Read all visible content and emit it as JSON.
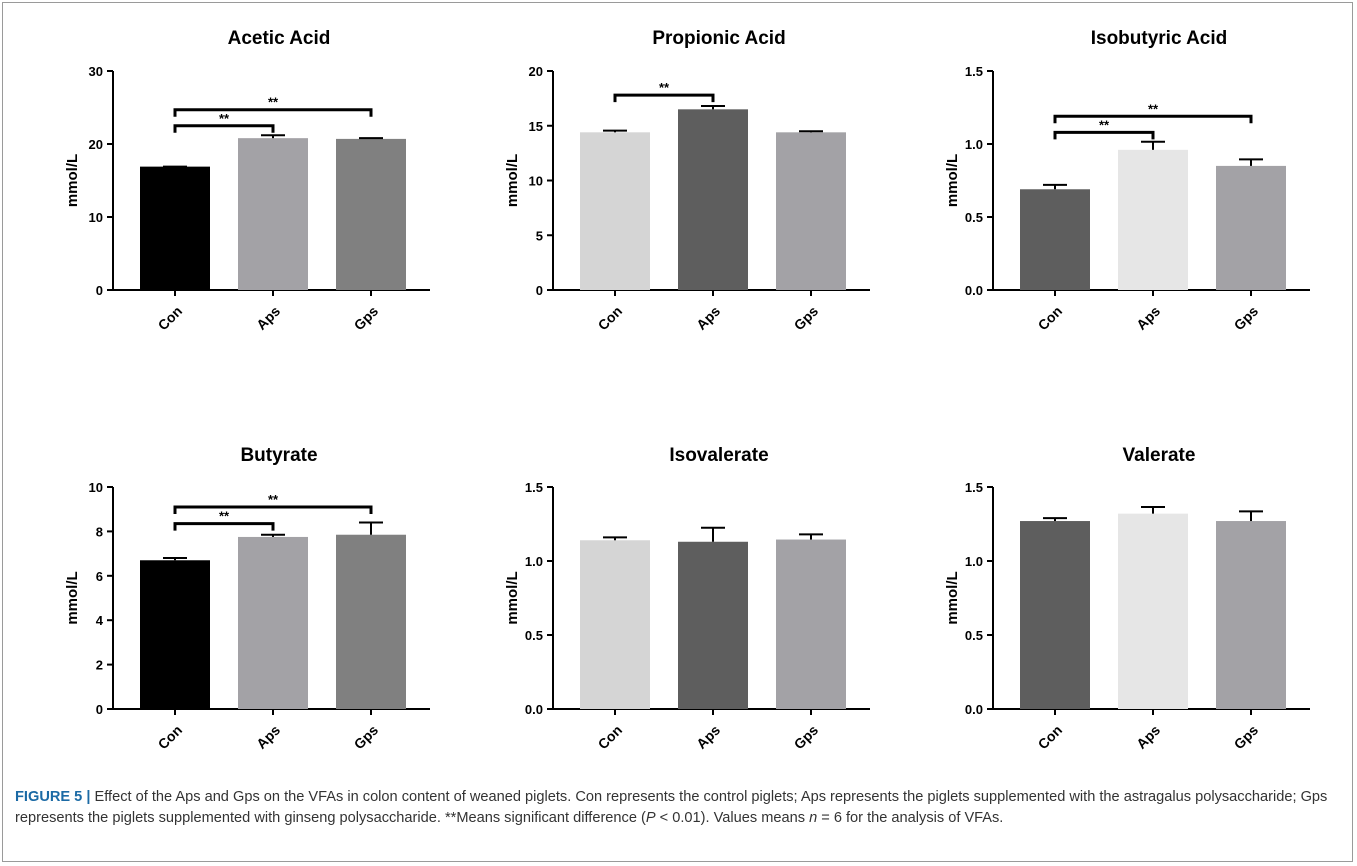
{
  "caption": {
    "figure_label": "FIGURE 5 |",
    "text_part1": " Effect of the Aps and Gps on the VFAs in colon content of weaned piglets. Con represents the control piglets; Aps represents the piglets supplemented with the astragalus polysaccharide; Gps represents the piglets supplemented with ginseng polysaccharide. **Means significant difference (",
    "p_symbol": "P",
    "text_part2": " < 0.01). Values means ",
    "n_symbol": "n",
    "text_part3": " = 6 for the analysis of VFAs."
  },
  "chart_data": [
    {
      "type": "bar",
      "title": "Acetic Acid",
      "ylabel": "mmol/L",
      "categories": [
        "Con",
        "Aps",
        "Gps"
      ],
      "values": [
        16.9,
        20.8,
        20.7
      ],
      "errors": [
        0.0,
        0.4,
        0.1
      ],
      "colors": [
        "#000000",
        "#a3a2a6",
        "#808080"
      ],
      "ylim": [
        0,
        30
      ],
      "yticks": [
        "0",
        "10",
        "20",
        "30"
      ],
      "significance": [
        {
          "from": 0,
          "to": 1,
          "label": "**",
          "y": 22.5
        },
        {
          "from": 0,
          "to": 2,
          "label": "**",
          "y": 24.7
        }
      ]
    },
    {
      "type": "bar",
      "title": "Propionic Acid",
      "ylabel": "mmol/L",
      "categories": [
        "Con",
        "Aps",
        "Gps"
      ],
      "values": [
        14.4,
        16.5,
        14.4
      ],
      "errors": [
        0.15,
        0.3,
        0.1
      ],
      "colors": [
        "#d5d5d5",
        "#5e5e5e",
        "#a3a2a6"
      ],
      "ylim": [
        0,
        20
      ],
      "yticks": [
        "0",
        "5",
        "10",
        "15",
        "20"
      ],
      "significance": [
        {
          "from": 0,
          "to": 1,
          "label": "**",
          "y": 17.8
        }
      ]
    },
    {
      "type": "bar",
      "title": "Isobutyric Acid",
      "ylabel": "mmol/L",
      "categories": [
        "Con",
        "Aps",
        "Gps"
      ],
      "values": [
        0.69,
        0.96,
        0.85
      ],
      "errors": [
        0.03,
        0.055,
        0.045
      ],
      "colors": [
        "#5e5e5e",
        "#e6e6e6",
        "#a3a2a6"
      ],
      "ylim": [
        0,
        1.5
      ],
      "yticks": [
        "0.0",
        "0.5",
        "1.0",
        "1.5"
      ],
      "significance": [
        {
          "from": 0,
          "to": 1,
          "label": "**",
          "y": 1.08
        },
        {
          "from": 0,
          "to": 2,
          "label": "**",
          "y": 1.19
        }
      ]
    },
    {
      "type": "bar",
      "title": "Butyrate",
      "ylabel": "mmol/L",
      "categories": [
        "Con",
        "Aps",
        "Gps"
      ],
      "values": [
        6.7,
        7.75,
        7.85
      ],
      "errors": [
        0.1,
        0.1,
        0.55
      ],
      "colors": [
        "#000000",
        "#a3a2a6",
        "#808080"
      ],
      "ylim": [
        0,
        10
      ],
      "yticks": [
        "0",
        "2",
        "4",
        "6",
        "8",
        "10"
      ],
      "significance": [
        {
          "from": 0,
          "to": 1,
          "label": "**",
          "y": 8.35
        },
        {
          "from": 0,
          "to": 2,
          "label": "**",
          "y": 9.1
        }
      ]
    },
    {
      "type": "bar",
      "title": "Isovalerate",
      "ylabel": "mmol/L",
      "categories": [
        "Con",
        "Aps",
        "Gps"
      ],
      "values": [
        1.14,
        1.13,
        1.145
      ],
      "errors": [
        0.02,
        0.095,
        0.035
      ],
      "colors": [
        "#d5d5d5",
        "#5e5e5e",
        "#a3a2a6"
      ],
      "ylim": [
        0,
        1.5
      ],
      "yticks": [
        "0.0",
        "0.5",
        "1.0",
        "1.5"
      ],
      "significance": []
    },
    {
      "type": "bar",
      "title": "Valerate",
      "ylabel": "mmol/L",
      "categories": [
        "Con",
        "Aps",
        "Gps"
      ],
      "values": [
        1.27,
        1.32,
        1.27
      ],
      "errors": [
        0.02,
        0.045,
        0.065
      ],
      "colors": [
        "#5e5e5e",
        "#e6e6e6",
        "#a3a2a6"
      ],
      "ylim": [
        0,
        1.5
      ],
      "yticks": [
        "0.0",
        "0.5",
        "1.0",
        "1.5"
      ],
      "significance": []
    }
  ]
}
